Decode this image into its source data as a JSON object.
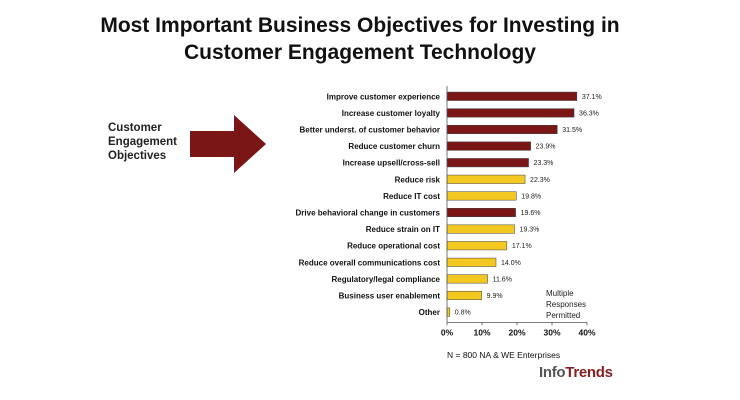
{
  "title": [
    "Most Important Business Objectives for Investing in",
    "Customer Engagement Technology"
  ],
  "side_label": [
    "Customer",
    "Engagement",
    "Objectives"
  ],
  "note": [
    "Multiple",
    "Responses",
    "Permitted"
  ],
  "footnote": "N = 800 NA & WE Enterprises",
  "logo": {
    "part1": "Info",
    "part2": "Trends"
  },
  "colors": {
    "top_series": "#7b1616",
    "other_series": "#f3c821",
    "arrow": "#7b1616"
  },
  "chart_data": {
    "type": "bar",
    "orientation": "horizontal",
    "title": "Most Important Business Objectives for Investing in Customer Engagement Technology",
    "categories": [
      "Improve customer experience",
      "Increase customer loyalty",
      "Better underst. of customer behavior",
      "Reduce customer churn",
      "Increase upsell/cross-sell",
      "Reduce risk",
      "Reduce IT cost",
      "Drive behavioral change in customers",
      "Reduce strain on IT",
      "Reduce operational cost",
      "Reduce overall communications cost",
      "Regulatory/legal compliance",
      "Business user enablement",
      "Other"
    ],
    "values": [
      37.1,
      36.3,
      31.5,
      23.9,
      23.3,
      22.3,
      19.8,
      19.6,
      19.3,
      17.1,
      14.0,
      11.6,
      9.9,
      0.8
    ],
    "value_labels": [
      "37.1%",
      "36.3%",
      "31.5%",
      "23.9%",
      "23.3%",
      "22.3%",
      "19.8%",
      "19.6%",
      "19.3%",
      "17.1%",
      "14.0%",
      "11.6%",
      "9.9%",
      "0.8%"
    ],
    "color_group": [
      "top",
      "top",
      "top",
      "top",
      "top",
      "other",
      "other",
      "top",
      "other",
      "other",
      "other",
      "other",
      "other",
      "other"
    ],
    "xlim": [
      0,
      40
    ],
    "xticks": [
      "0%",
      "10%",
      "20%",
      "30%",
      "40%"
    ],
    "grid": false,
    "legend": "none"
  }
}
